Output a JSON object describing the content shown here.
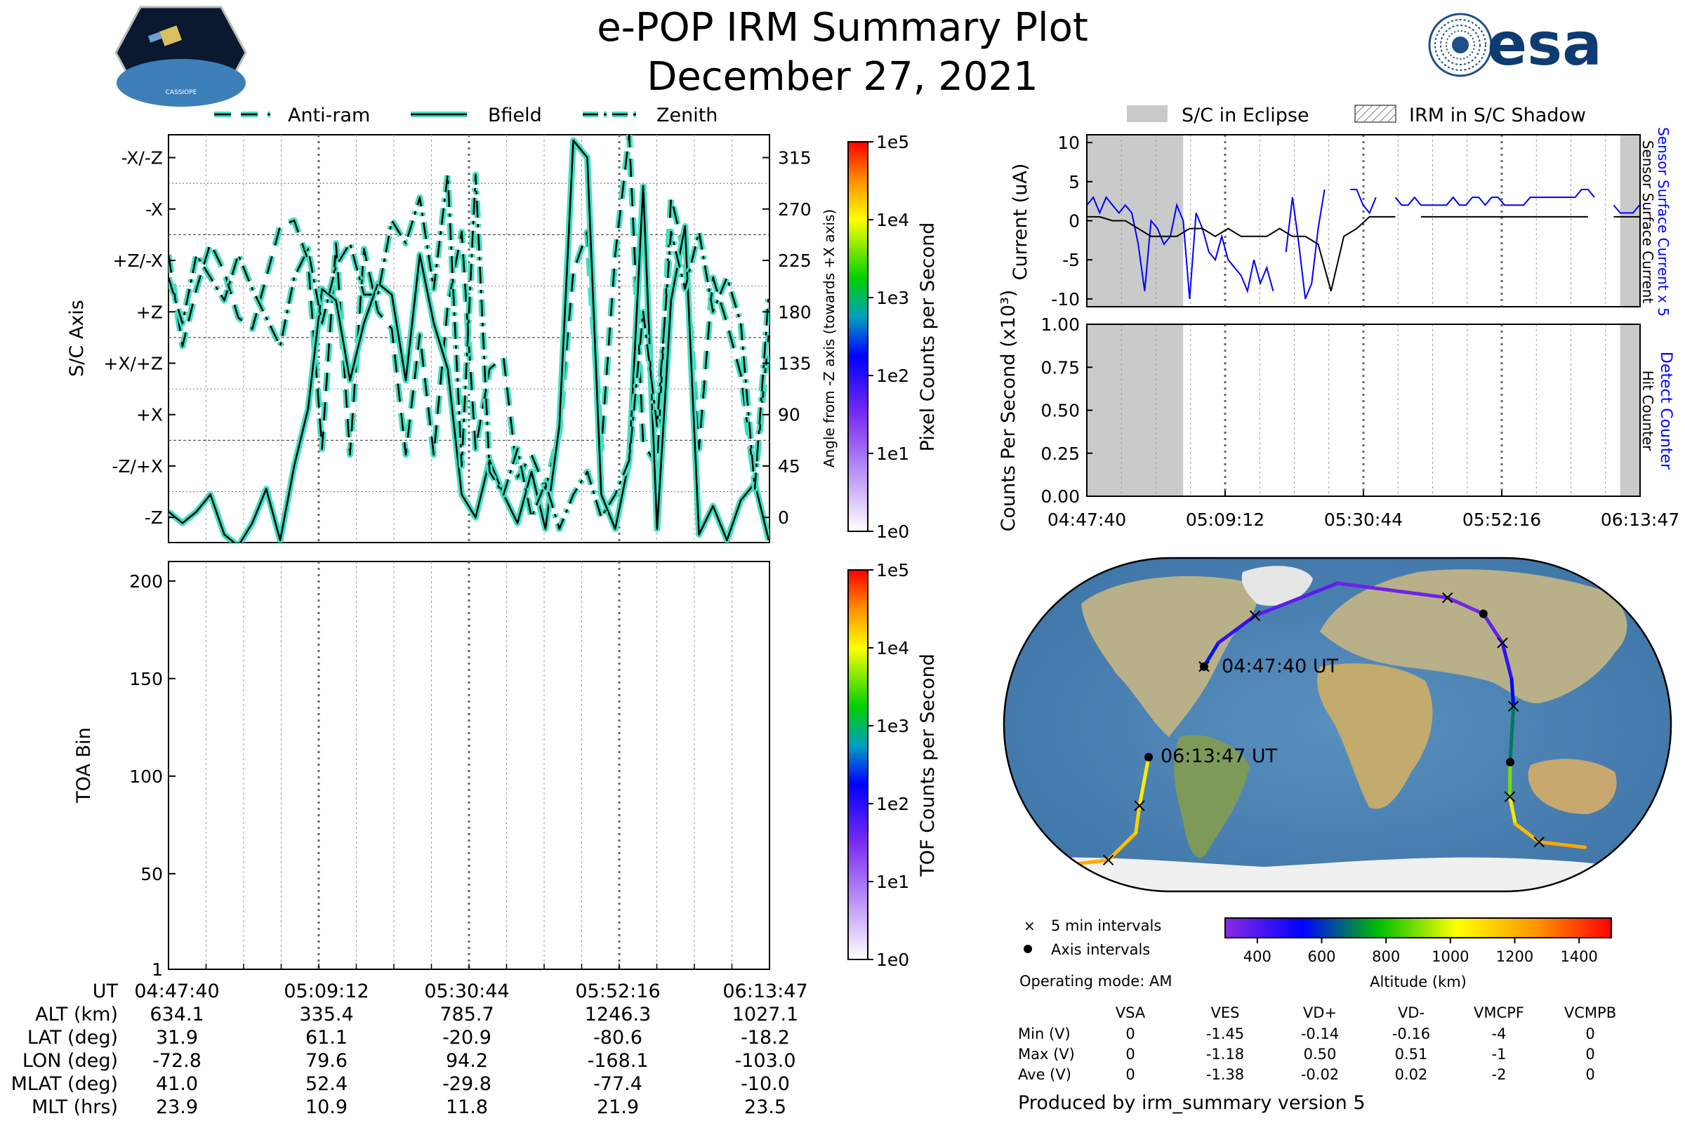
{
  "header": {
    "title": "e-POP IRM Summary Plot",
    "date": "December 27, 2021",
    "mission_logo": "CASSIOPE",
    "agency_logo": "esa"
  },
  "colors": {
    "trace_fill": "#40e0c0",
    "trace_outline": "#000000",
    "eclipse": "#c9cbcb",
    "sensor_current": "#0000ff",
    "surface_current": "#000000",
    "detect_counter": "#0000ff",
    "ocean": "#4f86b5",
    "land": "#b9b48a"
  },
  "legend_top_left": [
    {
      "label": "Anti-ram",
      "style": "dashed"
    },
    {
      "label": "Bfield",
      "style": "solid"
    },
    {
      "label": "Zenith",
      "style": "dashdot"
    }
  ],
  "legend_top_right": [
    {
      "label": "S/C in Eclipse",
      "style": "gray-fill"
    },
    {
      "label": "IRM in S/C Shadow",
      "style": "hatched"
    }
  ],
  "chart_data": [
    {
      "type": "line",
      "id": "orientation",
      "ylabel": "S/C Axis",
      "y2label": "Angle from -Z axis (towards +X axis)",
      "yticks_left": [
        "-X/-Z",
        "-X",
        "+Z/-X",
        "+Z",
        "+X/+Z",
        "+X",
        "-Z/+X",
        "-Z"
      ],
      "yticks_right": [
        "315",
        "270",
        "225",
        "180",
        "135",
        "90",
        "45",
        "0"
      ],
      "ylim": [
        -22,
        335
      ],
      "xlim_min": [
        0,
        86.1
      ],
      "series": [
        {
          "name": "Anti-ram",
          "style": "dashed",
          "x": [
            0,
            2,
            4,
            6,
            8,
            10,
            12,
            14,
            16,
            18,
            20,
            22,
            24,
            26,
            28,
            30,
            32,
            34,
            36,
            38,
            40,
            42,
            44,
            46,
            48,
            50,
            52,
            54,
            56,
            58,
            60,
            62,
            64,
            66,
            68,
            70,
            72,
            74,
            76,
            78,
            80,
            82,
            84,
            86
          ],
          "y": [
            230,
            150,
            200,
            240,
            215,
            175,
            165,
            210,
            255,
            260,
            225,
            60,
            240,
            55,
            235,
            180,
            165,
            55,
            160,
            55,
            185,
            250,
            60,
            130,
            140,
            35,
            55,
            25,
            75,
            215,
            250,
            60,
            230,
            335,
            65,
            45,
            280,
            230,
            60,
            210,
            170,
            125,
            30,
            160
          ]
        },
        {
          "name": "Bfield",
          "style": "solid",
          "x": [
            0,
            2,
            4,
            6,
            8,
            10,
            12,
            14,
            16,
            18,
            20,
            22,
            24,
            26,
            28,
            30,
            32,
            34,
            36,
            38,
            40,
            42,
            44,
            46,
            48,
            50,
            52,
            54,
            56,
            58,
            60,
            62,
            64,
            66,
            68,
            70,
            72,
            74,
            76,
            78,
            80,
            82,
            84,
            86
          ],
          "y": [
            5,
            -5,
            5,
            20,
            -15,
            -25,
            -5,
            25,
            -20,
            45,
            95,
            200,
            190,
            120,
            170,
            205,
            195,
            120,
            230,
            170,
            130,
            20,
            0,
            50,
            20,
            -5,
            40,
            -10,
            80,
            330,
            315,
            20,
            -10,
            50,
            290,
            -10,
            190,
            255,
            -15,
            10,
            -20,
            15,
            30,
            -20
          ]
        },
        {
          "name": "Zenith",
          "style": "dashdot",
          "x": [
            0,
            2,
            4,
            6,
            8,
            10,
            12,
            14,
            16,
            18,
            20,
            22,
            24,
            26,
            28,
            30,
            32,
            34,
            36,
            38,
            40,
            42,
            44,
            46,
            48,
            50,
            52,
            54,
            56,
            58,
            60,
            62,
            64,
            66,
            68,
            70,
            72,
            74,
            76,
            78,
            80,
            82,
            84,
            86
          ],
          "y": [
            210,
            170,
            230,
            210,
            190,
            230,
            200,
            175,
            150,
            210,
            235,
            170,
            220,
            240,
            195,
            195,
            260,
            240,
            280,
            200,
            300,
            45,
            300,
            40,
            20,
            60,
            0,
            30,
            -10,
            20,
            40,
            0,
            20,
            50,
            180,
            80,
            250,
            200,
            250,
            180,
            210,
            170,
            25,
            195
          ]
        }
      ]
    },
    {
      "type": "heatmap",
      "id": "toa",
      "ylabel": "TOA Bin",
      "yticks": [
        1,
        50,
        100,
        150,
        200
      ],
      "ylim": [
        1,
        210
      ],
      "values": []
    },
    {
      "type": "line",
      "id": "current",
      "ylabel": "Current (uA)",
      "y2label_blue": "Sensor Surface Current x 5",
      "y2label_black": "Sensor Surface Current",
      "yticks": [
        10,
        5,
        0,
        -5,
        -10
      ],
      "ylim": [
        -11,
        11
      ],
      "eclipse_min": [
        [
          0,
          15
        ],
        [
          83,
          86.1
        ]
      ],
      "series": [
        {
          "name": "Sensor Surface Current x 5",
          "color": "#0000ff",
          "x": [
            0,
            1,
            2,
            3,
            4,
            5,
            6,
            7,
            8,
            9,
            10,
            11,
            12,
            13,
            14,
            15,
            16,
            17,
            18,
            19,
            20,
            21,
            22,
            23,
            24,
            25,
            26,
            27,
            28,
            29,
            30,
            31,
            32,
            33,
            34,
            35,
            36,
            37,
            38,
            39,
            40,
            41,
            42,
            43,
            44,
            45,
            46,
            47,
            48,
            49,
            50,
            51,
            52,
            53,
            54,
            55,
            56,
            57,
            58,
            59,
            60,
            61,
            62,
            63,
            64,
            65,
            66,
            67,
            68,
            69,
            70,
            71,
            72,
            73,
            74,
            75,
            76,
            77,
            78,
            79,
            80,
            81,
            82,
            83,
            84,
            85,
            86
          ],
          "y": [
            2,
            3,
            1,
            3,
            2,
            1,
            2,
            1,
            -3,
            -9,
            0,
            -1,
            -3,
            -2,
            2,
            0,
            -10,
            1,
            -1,
            -4,
            -5,
            -2,
            -5,
            -6,
            -7,
            -9,
            -5,
            -8,
            -6,
            -9,
            null,
            -4,
            3,
            -3,
            -10,
            -8,
            -1,
            4,
            null,
            null,
            null,
            4,
            4,
            2,
            1,
            3,
            null,
            null,
            3,
            2,
            2,
            3,
            2,
            2,
            2,
            2,
            2,
            3,
            2,
            2,
            3,
            3,
            2,
            3,
            3,
            2,
            2,
            2,
            2,
            3,
            3,
            3,
            3,
            3,
            3,
            3,
            3,
            4,
            4,
            3,
            null,
            null,
            2,
            1,
            1,
            1,
            2
          ]
        },
        {
          "name": "Sensor Surface Current",
          "color": "#000000",
          "x": [
            0,
            2,
            4,
            6,
            8,
            10,
            12,
            14,
            16,
            18,
            20,
            22,
            24,
            26,
            28,
            30,
            32,
            34,
            36,
            38,
            40,
            42,
            44,
            46,
            48,
            50,
            52,
            54,
            56,
            58,
            60,
            62,
            64,
            66,
            68,
            70,
            72,
            74,
            76,
            78,
            80,
            82,
            84,
            86
          ],
          "y": [
            0.5,
            0.5,
            0,
            0,
            -1,
            -2,
            -2,
            -2,
            -1,
            -1,
            -2,
            -1,
            -2,
            -2,
            -2,
            -1,
            -2,
            -2,
            -3,
            -9,
            -2,
            -1,
            0.5,
            0.5,
            0.5,
            null,
            0.5,
            0.5,
            0.5,
            0.5,
            0.5,
            0.5,
            0.5,
            0.5,
            0.5,
            0.5,
            0.5,
            0.5,
            0.5,
            0.5,
            null,
            0.5,
            0.5,
            0.5
          ]
        }
      ]
    },
    {
      "type": "line",
      "id": "counts",
      "ylabel": "Counts Per Second (x10³)",
      "y2label_blue": "Detect Counter",
      "y2label_black": "Hit Counter",
      "yticks": [
        "1.00",
        "0.75",
        "0.50",
        "0.25",
        "0.00"
      ],
      "ylim": [
        0,
        1
      ],
      "xticks": [
        "04:47:40",
        "05:09:12",
        "05:30:44",
        "05:52:16",
        "06:13:47"
      ],
      "eclipse_min": [
        [
          0,
          15
        ],
        [
          83,
          86.1
        ]
      ],
      "series": [
        {
          "name": "Detect Counter",
          "color": "#0000ff",
          "x": [
            0,
            86
          ],
          "y": [
            0,
            0
          ]
        }
      ]
    }
  ],
  "colorbars": [
    {
      "label": "Pixel Counts per Second",
      "ticks": [
        "1e5",
        "1e4",
        "1e3",
        "1e2",
        "1e1",
        "1e0"
      ]
    },
    {
      "label": "TOF Counts per Second",
      "ticks": [
        "1e5",
        "1e4",
        "1e3",
        "1e2",
        "1e1",
        "1e0"
      ]
    }
  ],
  "altitude_colorbar": {
    "label": "Altitude (km)",
    "ticks": [
      "400",
      "600",
      "800",
      "1000",
      "1200",
      "1400"
    ],
    "range": [
      300,
      1500
    ]
  },
  "map": {
    "start_label": "04:47:40 UT",
    "end_label": "06:13:47 UT",
    "track": [
      {
        "lon": -72.8,
        "lat": 31.9,
        "alt": 634
      },
      {
        "lon": -65,
        "lat": 45,
        "alt": 500
      },
      {
        "lon": -45,
        "lat": 60,
        "alt": 400
      },
      {
        "lon": 0,
        "lat": 78,
        "alt": 360
      },
      {
        "lon": 60,
        "lat": 70,
        "alt": 336
      },
      {
        "lon": 79.6,
        "lat": 61.1,
        "alt": 335
      },
      {
        "lon": 90,
        "lat": 45,
        "alt": 400
      },
      {
        "lon": 95,
        "lat": 25,
        "alt": 500
      },
      {
        "lon": 96,
        "lat": 10,
        "alt": 600
      },
      {
        "lon": 94.2,
        "lat": -20.9,
        "alt": 786
      },
      {
        "lon": 94,
        "lat": -40,
        "alt": 1000
      },
      {
        "lon": 97,
        "lat": -55,
        "alt": 1150
      },
      {
        "lon": 110,
        "lat": -65,
        "alt": 1200
      },
      {
        "lon": 135,
        "lat": -68,
        "alt": 1250
      }
    ],
    "track2": [
      {
        "lon": -168.1,
        "lat": -80.6,
        "alt": 1246
      },
      {
        "lon": -150,
        "lat": -78,
        "alt": 1230
      },
      {
        "lon": -125,
        "lat": -75,
        "alt": 1200
      },
      {
        "lon": -110,
        "lat": -60,
        "alt": 1150
      },
      {
        "lon": -108,
        "lat": -45,
        "alt": 1100
      },
      {
        "lon": -103,
        "lat": -18.2,
        "alt": 1027
      }
    ],
    "legend_cross": "5 min intervals",
    "legend_dot": "Axis intervals"
  },
  "operating_mode": "Operating mode: AM",
  "voltage_table": {
    "columns": [
      "VSA",
      "VES",
      "VD+",
      "VD-",
      "VMCPF",
      "VCMPB"
    ],
    "rows": [
      {
        "label": "Min (V)",
        "values": [
          "0",
          "-1.45",
          "-0.14",
          "-0.16",
          "-4",
          "0"
        ]
      },
      {
        "label": "Max (V)",
        "values": [
          "0",
          "-1.18",
          "0.50",
          "0.51",
          "-1",
          "0"
        ]
      },
      {
        "label": "Ave (V)",
        "values": [
          "0",
          "-1.38",
          "-0.02",
          "0.02",
          "-2",
          "0"
        ]
      }
    ]
  },
  "orbit_table": {
    "rows": [
      {
        "label": "UT",
        "values": [
          "04:47:40",
          "05:09:12",
          "05:30:44",
          "05:52:16",
          "06:13:47"
        ]
      },
      {
        "label": "ALT (km)",
        "values": [
          "634.1",
          "335.4",
          "785.7",
          "1246.3",
          "1027.1"
        ]
      },
      {
        "label": "LAT (deg)",
        "values": [
          "31.9",
          "61.1",
          "-20.9",
          "-80.6",
          "-18.2"
        ]
      },
      {
        "label": "LON (deg)",
        "values": [
          "-72.8",
          "79.6",
          "94.2",
          "-168.1",
          "-103.0"
        ]
      },
      {
        "label": "MLAT (deg)",
        "values": [
          "41.0",
          "52.4",
          "-29.8",
          "-77.4",
          "-10.0"
        ]
      },
      {
        "label": "MLT (hrs)",
        "values": [
          "23.9",
          "10.9",
          "11.8",
          "21.9",
          "23.5"
        ]
      }
    ]
  },
  "footer": "Produced by irm_summary version 5"
}
